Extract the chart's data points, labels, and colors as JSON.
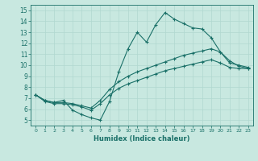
{
  "xlabel": "Humidex (Indice chaleur)",
  "background_color": "#c8e8e0",
  "grid_color": "#b0d8d0",
  "line_color": "#1a7068",
  "xlim": [
    -0.5,
    23.5
  ],
  "ylim": [
    4.5,
    15.5
  ],
  "xticks": [
    0,
    1,
    2,
    3,
    4,
    5,
    6,
    7,
    8,
    9,
    10,
    11,
    12,
    13,
    14,
    15,
    16,
    17,
    18,
    19,
    20,
    21,
    22,
    23
  ],
  "yticks": [
    5,
    6,
    7,
    8,
    9,
    10,
    11,
    12,
    13,
    14,
    15
  ],
  "line1": {
    "x": [
      0,
      1,
      2,
      3,
      4,
      5,
      6,
      7,
      8,
      9,
      10,
      11,
      12,
      13,
      14,
      15,
      16,
      17,
      18,
      19,
      20,
      21,
      22,
      23
    ],
    "y": [
      7.3,
      6.8,
      6.6,
      6.8,
      5.9,
      5.5,
      5.2,
      5.0,
      6.7,
      9.4,
      11.5,
      13.0,
      12.1,
      13.7,
      14.8,
      14.2,
      13.8,
      13.4,
      13.3,
      12.5,
      11.2,
      10.2,
      10.0,
      9.8
    ]
  },
  "line2": {
    "x": [
      0,
      1,
      2,
      3,
      4,
      5,
      6,
      7,
      8,
      9,
      10,
      11,
      12,
      13,
      14,
      15,
      16,
      17,
      18,
      19,
      20,
      21,
      22,
      23
    ],
    "y": [
      7.3,
      6.8,
      6.6,
      6.6,
      6.5,
      6.3,
      6.1,
      6.8,
      7.8,
      8.5,
      9.0,
      9.4,
      9.7,
      10.0,
      10.3,
      10.6,
      10.9,
      11.1,
      11.3,
      11.5,
      11.2,
      10.4,
      9.9,
      9.7
    ]
  },
  "line3": {
    "x": [
      0,
      1,
      2,
      3,
      4,
      5,
      6,
      7,
      8,
      9,
      10,
      11,
      12,
      13,
      14,
      15,
      16,
      17,
      18,
      19,
      20,
      21,
      22,
      23
    ],
    "y": [
      7.3,
      6.7,
      6.5,
      6.5,
      6.4,
      6.2,
      5.9,
      6.5,
      7.3,
      7.9,
      8.3,
      8.6,
      8.9,
      9.2,
      9.5,
      9.7,
      9.9,
      10.1,
      10.3,
      10.5,
      10.2,
      9.8,
      9.7,
      9.7
    ]
  }
}
